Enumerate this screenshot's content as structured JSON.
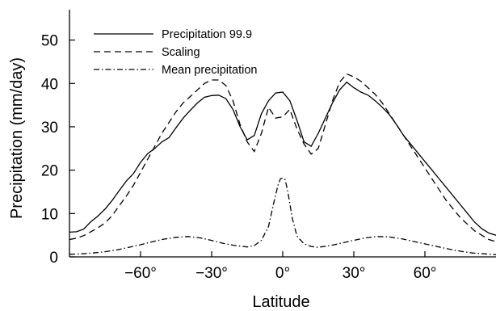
{
  "chart_data": {
    "type": "line",
    "title": "",
    "xlabel": "Latitude",
    "ylabel": "Precipitation (mm/day)",
    "xlim": [
      -90,
      90
    ],
    "ylim": [
      0,
      57
    ],
    "xticks": [
      -60,
      -30,
      0,
      30,
      60
    ],
    "xtick_labels": [
      "−60°",
      "−30°",
      "0°",
      "30°",
      "60°"
    ],
    "yticks": [
      0,
      10,
      20,
      30,
      40,
      50
    ],
    "ytick_labels": [
      "0",
      "10",
      "20",
      "30",
      "40",
      "50"
    ],
    "grid": false,
    "legend_position": "top-left",
    "series": [
      {
        "name": "Precipitation 99.9",
        "style": "solid",
        "color": "#000000",
        "x": [
          -90,
          -87,
          -84,
          -81,
          -78,
          -75,
          -72,
          -69,
          -66,
          -63,
          -60,
          -57,
          -54,
          -51,
          -48,
          -45,
          -42,
          -39,
          -36,
          -33,
          -30,
          -27,
          -24,
          -21,
          -18,
          -15,
          -12,
          -9,
          -6,
          -3,
          0,
          3,
          6,
          9,
          12,
          15,
          18,
          21,
          24,
          27,
          30,
          33,
          36,
          39,
          42,
          45,
          48,
          51,
          54,
          57,
          60,
          63,
          66,
          69,
          72,
          75,
          78,
          81,
          84,
          87,
          90
        ],
        "values": [
          5.7,
          5.8,
          6.4,
          8.1,
          9.4,
          11.0,
          13.0,
          15.3,
          17.5,
          19.2,
          21.8,
          23.8,
          25.0,
          26.5,
          27.5,
          29.8,
          32.0,
          33.8,
          35.5,
          36.8,
          37.2,
          37.3,
          36.5,
          34.0,
          30.0,
          27.0,
          28.0,
          33.0,
          36.0,
          37.8,
          38.0,
          36.0,
          31.5,
          26.5,
          25.5,
          28.5,
          32.0,
          35.5,
          38.5,
          40.3,
          39.0,
          38.0,
          37.3,
          36.0,
          34.5,
          32.8,
          30.5,
          28.0,
          26.0,
          24.0,
          22.0,
          20.0,
          18.0,
          16.0,
          14.0,
          12.0,
          10.0,
          8.0,
          6.5,
          5.5,
          5.0
        ]
      },
      {
        "name": "Scaling",
        "style": "dashed",
        "color": "#000000",
        "x": [
          -90,
          -87,
          -84,
          -81,
          -78,
          -75,
          -72,
          -69,
          -66,
          -63,
          -60,
          -57,
          -54,
          -51,
          -48,
          -45,
          -42,
          -39,
          -36,
          -33,
          -30,
          -27,
          -24,
          -21,
          -18,
          -15,
          -12,
          -9,
          -6,
          -3,
          0,
          3,
          6,
          9,
          12,
          15,
          18,
          21,
          24,
          27,
          30,
          33,
          36,
          39,
          42,
          45,
          48,
          51,
          54,
          57,
          60,
          63,
          66,
          69,
          72,
          75,
          78,
          81,
          84,
          87,
          90
        ],
        "values": [
          4.0,
          4.3,
          4.9,
          5.8,
          6.7,
          7.8,
          9.5,
          11.8,
          14.0,
          16.5,
          19.5,
          22.5,
          25.5,
          28.5,
          31.0,
          33.5,
          35.5,
          37.0,
          38.5,
          40.0,
          40.8,
          40.8,
          39.5,
          36.0,
          30.5,
          26.5,
          24.3,
          28.5,
          34.5,
          32.0,
          32.3,
          34.0,
          29.5,
          26.0,
          23.7,
          25.0,
          30.5,
          36.0,
          40.3,
          42.2,
          41.5,
          40.5,
          39.0,
          37.5,
          35.5,
          33.0,
          30.5,
          28.0,
          25.5,
          23.0,
          20.5,
          18.0,
          15.5,
          13.0,
          11.0,
          9.0,
          7.5,
          6.0,
          5.0,
          4.0,
          3.5
        ]
      },
      {
        "name": "Mean precipitation",
        "style": "dashdot",
        "color": "#000000",
        "x": [
          -90,
          -85,
          -80,
          -75,
          -70,
          -65,
          -60,
          -55,
          -50,
          -45,
          -40,
          -35,
          -30,
          -25,
          -20,
          -15,
          -12,
          -9,
          -6,
          -4,
          -2,
          -1,
          0,
          1,
          2,
          4,
          6,
          9,
          12,
          15,
          20,
          25,
          30,
          35,
          40,
          45,
          50,
          55,
          60,
          65,
          70,
          75,
          80,
          85,
          90
        ],
        "values": [
          0.6,
          0.7,
          0.9,
          1.2,
          1.6,
          2.2,
          2.8,
          3.5,
          4.1,
          4.5,
          4.7,
          4.4,
          3.8,
          3.1,
          2.6,
          2.3,
          2.6,
          3.8,
          7.0,
          12.0,
          16.5,
          18.0,
          18.2,
          17.8,
          15.5,
          9.0,
          4.8,
          3.0,
          2.4,
          2.2,
          2.6,
          3.2,
          3.8,
          4.4,
          4.7,
          4.6,
          4.2,
          3.6,
          3.0,
          2.4,
          1.8,
          1.3,
          0.9,
          0.7,
          0.5
        ]
      }
    ]
  }
}
